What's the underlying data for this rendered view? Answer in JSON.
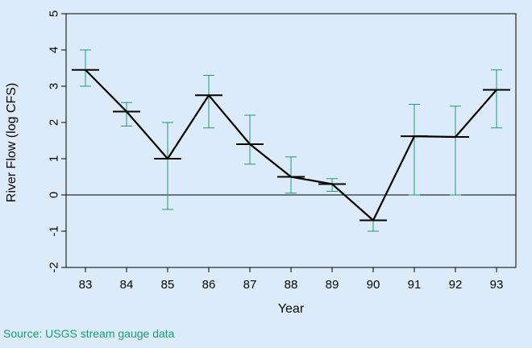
{
  "chart_data": {
    "type": "line",
    "xlabel": "Year",
    "ylabel": "River Flow (log CFS)",
    "categories": [
      "83",
      "84",
      "85",
      "86",
      "87",
      "88",
      "89",
      "90",
      "91",
      "92",
      "93"
    ],
    "y_ticks": [
      -2,
      -1,
      0,
      1,
      2,
      3,
      4,
      5
    ],
    "ylim": [
      -2,
      5
    ],
    "series": [
      {
        "values": [
          3.45,
          2.3,
          1.0,
          2.75,
          1.4,
          0.5,
          0.3,
          -0.7,
          1.62,
          1.6,
          2.9
        ],
        "lower": [
          3.0,
          1.9,
          -0.4,
          1.85,
          0.85,
          0.05,
          0.1,
          -1.0,
          0.0,
          0.0,
          1.85
        ],
        "upper": [
          4.0,
          2.55,
          2.0,
          3.3,
          2.2,
          1.05,
          0.45,
          -0.7,
          2.5,
          2.45,
          3.45
        ]
      }
    ],
    "reference_line": 0,
    "colors": {
      "line": "#000000",
      "error_bar": "#1d9a73",
      "background": "#dbebf9"
    }
  },
  "source_note": "Source: USGS stream gauge data"
}
